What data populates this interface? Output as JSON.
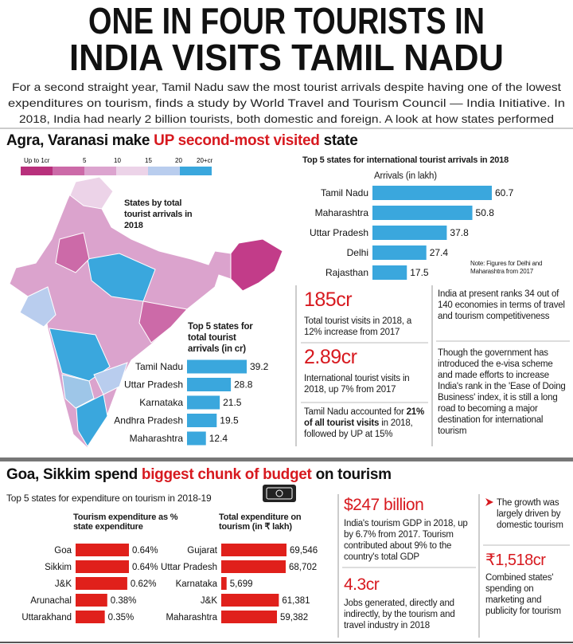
{
  "header": {
    "title_lines": [
      "ONE IN FOUR TOURISTS IN",
      "INDIA VISITS TAMIL NADU"
    ],
    "intro_lines": [
      "For a second straight year, Tamil Nadu saw the most tourist arrivals despite having one of the lowest",
      "expenditures on tourism, finds a study by World Travel and Tourism Council — India Initiative. In",
      "2018, India had nearly 2 billion tourists, both domestic and foreign. A look at how states performed"
    ]
  },
  "section1": {
    "heading": [
      "Agra, Varanasi make ",
      "UP second-most visited",
      " state"
    ],
    "map": {
      "legend": [
        "Up to 1cr",
        "5",
        "10",
        "15",
        "20",
        "20+cr"
      ],
      "label": "States by total tourist arrivals in 2018"
    },
    "stats": {
      "total_value": "185cr",
      "total_text": "Total tourist visits in 2018, a 12% increase from 2017",
      "intl_value": "2.89cr",
      "intl_text": "International tourist visits in 2018, up 7% from 2017",
      "share_text": [
        "Tamil Nadu accounted for ",
        "21% of all tourist visits",
        " in 2018, followed by UP at 15%"
      ]
    },
    "rank_text": "India at present ranks 34 out of 140 economies in terms of travel and tourism competitiveness",
    "evisa_text": "Though the government has introduced the e-visa scheme and made efforts to increase India's rank in the 'Ease of Doing Business' index, it is still a long road to becoming a major destination for international tourism"
  },
  "section2": {
    "heading": [
      "Goa, Sikkim spend ",
      "biggest chunk of budget",
      " on tourism"
    ],
    "subtitle": "Top 5 states for expenditure on tourism in 2018-19",
    "gdp_value": "$247 billion",
    "gdp_text": "India's tourism GDP in 2018, up by 6.7% from 2017. Tourism contributed about 9% to the country's total GDP",
    "jobs_value": "4.3cr",
    "jobs_text": "Jobs generated, directly and indirectly, by the tourism and travel industry in 2018",
    "growth_text": "The growth was largely driven by domestic tourism",
    "spend_value": "₹1,518cr",
    "spend_text": "Combined states' spending on marketing and publicity for tourism"
  },
  "chart_data": [
    {
      "type": "bar",
      "orientation": "horizontal",
      "title": "Top 5 states for international tourist arrivals in 2018",
      "subtitle": "Arrivals (in lakh)",
      "note": "Note: Figures for Delhi and Maharashtra from 2017",
      "categories": [
        "Tamil Nadu",
        "Maharashtra",
        "Uttar Pradesh",
        "Delhi",
        "Rajasthan"
      ],
      "values": [
        60.7,
        50.8,
        37.8,
        27.4,
        17.5
      ],
      "color": "#3aa7dd"
    },
    {
      "type": "bar",
      "orientation": "horizontal",
      "title": "Top 5 states for total tourist arrivals (in cr)",
      "categories": [
        "Tamil Nadu",
        "Uttar Pradesh",
        "Karnataka",
        "Andhra Pradesh",
        "Maharashtra"
      ],
      "values": [
        39.2,
        28.8,
        21.5,
        19.5,
        12.4
      ],
      "color": "#3aa7dd"
    },
    {
      "type": "bar",
      "orientation": "horizontal",
      "title": "Tourism expenditure as % state expenditure",
      "categories": [
        "Goa",
        "Sikkim",
        "J&K",
        "Arunachal",
        "Uttarakhand"
      ],
      "values": [
        0.64,
        0.64,
        0.62,
        0.38,
        0.35
      ],
      "value_labels": [
        "0.64%",
        "0.64%",
        "0.62%",
        "0.38%",
        "0.35%"
      ],
      "color": "#e0201b"
    },
    {
      "type": "bar",
      "orientation": "horizontal",
      "title": "Total expenditure on tourism (in ₹ lakh)",
      "categories": [
        "Gujarat",
        "Uttar Pradesh",
        "Karnataka",
        "J&K",
        "Maharashtra"
      ],
      "values": [
        69546,
        68702,
        5699,
        61381,
        59382
      ],
      "value_labels": [
        "69,546",
        "68,702",
        "5,699",
        "61,381",
        "59,382"
      ],
      "color": "#e0201b"
    }
  ]
}
